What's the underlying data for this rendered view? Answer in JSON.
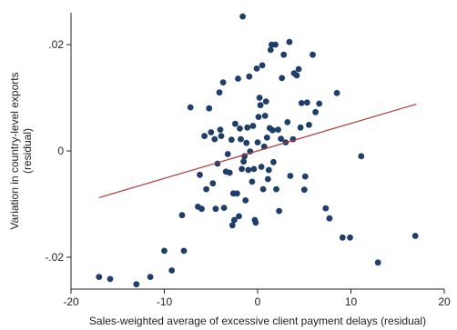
{
  "chart_data": {
    "type": "scatter",
    "title": "",
    "xlabel": "Sales-weighted average of excessive client payment delays (residual)",
    "ylabel_lines": [
      "Variation in country-level exports",
      "(residual)"
    ],
    "xlim": [
      -20,
      20
    ],
    "ylim": [
      -0.026,
      0.026
    ],
    "xticks": [
      -20,
      -10,
      0,
      10,
      20
    ],
    "xtick_labels": [
      "-20",
      "-10",
      "0",
      "10",
      "20"
    ],
    "yticks": [
      -0.02,
      0,
      0.02
    ],
    "ytick_labels": [
      "-.02",
      "0",
      ".02"
    ],
    "grid": false,
    "legend": "none",
    "colors": {
      "points": "#1f3f6a",
      "fit_line": "#b03a3a",
      "axis": "#222222"
    },
    "fit_line": {
      "x": [
        -17,
        17
      ],
      "y": [
        -0.0088,
        0.0088
      ]
    },
    "points": [
      {
        "x": -17,
        "y": -0.0237
      },
      {
        "x": -15.8,
        "y": -0.0241
      },
      {
        "x": -13,
        "y": -0.0251
      },
      {
        "x": -11.5,
        "y": -0.0237
      },
      {
        "x": -10,
        "y": -0.0188
      },
      {
        "x": -9.2,
        "y": -0.0225
      },
      {
        "x": -8.1,
        "y": -0.0121
      },
      {
        "x": -7.9,
        "y": -0.0188
      },
      {
        "x": -7.2,
        "y": 0.0082
      },
      {
        "x": -6.4,
        "y": -0.0105
      },
      {
        "x": -6.2,
        "y": -0.0045
      },
      {
        "x": -6,
        "y": -0.0109
      },
      {
        "x": -5.7,
        "y": 0.0028
      },
      {
        "x": -5.5,
        "y": -0.0072
      },
      {
        "x": -5.2,
        "y": 0.008
      },
      {
        "x": -5,
        "y": 0.0035
      },
      {
        "x": -4.8,
        "y": -0.0061
      },
      {
        "x": -4.6,
        "y": 0.0022
      },
      {
        "x": -4.5,
        "y": -0.0109
      },
      {
        "x": -4.3,
        "y": -0.0024
      },
      {
        "x": -4.1,
        "y": 0.011
      },
      {
        "x": -4,
        "y": 0.004
      },
      {
        "x": -3.9,
        "y": 0.0028
      },
      {
        "x": -3.7,
        "y": 0.0129
      },
      {
        "x": -3.6,
        "y": -0.0107
      },
      {
        "x": -3.4,
        "y": -0.0039
      },
      {
        "x": -3.2,
        "y": -0.0006
      },
      {
        "x": -3.0,
        "y": -0.0041
      },
      {
        "x": -2.8,
        "y": 0.0021
      },
      {
        "x": -2.7,
        "y": -0.014
      },
      {
        "x": -2.6,
        "y": -0.008
      },
      {
        "x": -2.5,
        "y": -0.013
      },
      {
        "x": -2.4,
        "y": 0.0051
      },
      {
        "x": -2.2,
        "y": -0.008
      },
      {
        "x": -2.1,
        "y": 0.0136
      },
      {
        "x": -2.0,
        "y": -0.0123
      },
      {
        "x": -1.9,
        "y": 0.0042
      },
      {
        "x": -1.8,
        "y": 0.0022
      },
      {
        "x": -1.7,
        "y": -0.0034
      },
      {
        "x": -1.6,
        "y": 0.0253
      },
      {
        "x": -1.5,
        "y": -0.002
      },
      {
        "x": -1.4,
        "y": -0.001
      },
      {
        "x": -1.3,
        "y": -0.0093
      },
      {
        "x": -1.2,
        "y": 0.0015
      },
      {
        "x": -1.1,
        "y": 0.0044
      },
      {
        "x": -1.0,
        "y": -0.0036
      },
      {
        "x": -0.9,
        "y": 0.014
      },
      {
        "x": -0.8,
        "y": -0.0001
      },
      {
        "x": -0.6,
        "y": -0.0058
      },
      {
        "x": -0.5,
        "y": 0.0047
      },
      {
        "x": -0.4,
        "y": -0.0034
      },
      {
        "x": -0.3,
        "y": -0.013
      },
      {
        "x": -0.2,
        "y": -0.0135
      },
      {
        "x": -0.1,
        "y": 0.0155
      },
      {
        "x": 0.0,
        "y": 0.0016
      },
      {
        "x": 0.1,
        "y": 0.0064
      },
      {
        "x": 0.2,
        "y": 0.01
      },
      {
        "x": 0.3,
        "y": 0.0086
      },
      {
        "x": 0.4,
        "y": -0.003
      },
      {
        "x": 0.5,
        "y": 0.0161
      },
      {
        "x": 0.6,
        "y": -0.0072
      },
      {
        "x": 0.7,
        "y": 0.0008
      },
      {
        "x": 0.8,
        "y": 0.0066
      },
      {
        "x": 0.9,
        "y": 0.0093
      },
      {
        "x": 1.0,
        "y": 0.0025
      },
      {
        "x": 1.1,
        "y": -0.0053
      },
      {
        "x": 1.2,
        "y": -0.0036
      },
      {
        "x": 1.3,
        "y": 0.0043
      },
      {
        "x": 1.4,
        "y": 0.019
      },
      {
        "x": 1.5,
        "y": 0.02
      },
      {
        "x": 1.6,
        "y": 0.0039
      },
      {
        "x": 1.7,
        "y": -0.0021
      },
      {
        "x": 1.9,
        "y": 0.02
      },
      {
        "x": 2.0,
        "y": -0.0072
      },
      {
        "x": 2.2,
        "y": 0.004
      },
      {
        "x": 2.3,
        "y": -0.0113
      },
      {
        "x": 2.5,
        "y": 0.0023
      },
      {
        "x": 2.6,
        "y": 0.0137
      },
      {
        "x": 2.8,
        "y": 0.0181
      },
      {
        "x": 3.0,
        "y": 0.0016
      },
      {
        "x": 3.2,
        "y": 0.0054
      },
      {
        "x": 3.4,
        "y": 0.0205
      },
      {
        "x": 3.5,
        "y": -0.0047
      },
      {
        "x": 3.8,
        "y": 0.0022
      },
      {
        "x": 3.9,
        "y": 0.0146
      },
      {
        "x": 4.2,
        "y": 0.0142
      },
      {
        "x": 4.4,
        "y": 0.0154
      },
      {
        "x": 4.6,
        "y": 0.0044
      },
      {
        "x": 4.7,
        "y": 0.009
      },
      {
        "x": 5.0,
        "y": -0.0073
      },
      {
        "x": 5.1,
        "y": -0.0048
      },
      {
        "x": 5.3,
        "y": 0.0091
      },
      {
        "x": 5.5,
        "y": 0.0049
      },
      {
        "x": 5.9,
        "y": 0.0181
      },
      {
        "x": 6.2,
        "y": 0.0073
      },
      {
        "x": 6.6,
        "y": 0.0089
      },
      {
        "x": 7.3,
        "y": -0.0108
      },
      {
        "x": 7.7,
        "y": -0.0127
      },
      {
        "x": 8.5,
        "y": 0.0109
      },
      {
        "x": 9.1,
        "y": -0.0163
      },
      {
        "x": 9.9,
        "y": -0.0163
      },
      {
        "x": 11.1,
        "y": -0.001
      },
      {
        "x": 12.9,
        "y": -0.021
      },
      {
        "x": 16.9,
        "y": -0.016
      }
    ]
  }
}
